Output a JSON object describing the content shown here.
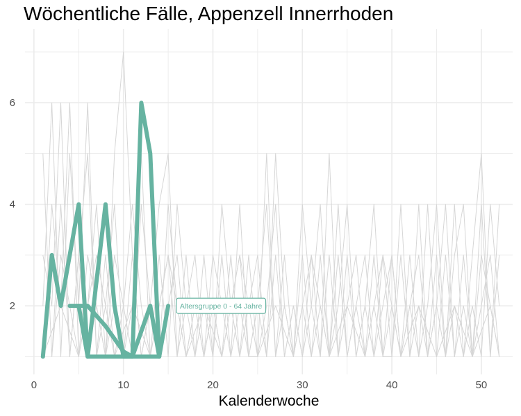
{
  "chart_data": {
    "type": "line",
    "title": "Wöchentliche Fälle, Appenzell Innerrhoden",
    "xlabel": "Kalenderwoche",
    "ylabel": "",
    "xlim": [
      -1,
      53.5
    ],
    "ylim": [
      0.65,
      7.45
    ],
    "x_ticks": [
      0,
      10,
      20,
      30,
      40,
      50
    ],
    "y_ticks": [
      2,
      4,
      6
    ],
    "grid": true,
    "legend": "none",
    "colors": {
      "highlight": "#66b3a1",
      "background_lines": "#d6d6d6",
      "grid": "#ebebeb"
    },
    "highlight_series": {
      "name": "Altersgruppe 0 - 64 Jahre",
      "segments": [
        [
          [
            1,
            1
          ],
          [
            2,
            3
          ],
          [
            3,
            2
          ],
          [
            5,
            4
          ],
          [
            6,
            1
          ],
          [
            8,
            4
          ],
          [
            9,
            2
          ],
          [
            10,
            1
          ],
          [
            11,
            1
          ],
          [
            12,
            6
          ],
          [
            13,
            5
          ],
          [
            14,
            1
          ]
        ],
        [
          [
            4,
            2
          ],
          [
            5,
            2
          ],
          [
            6,
            2
          ],
          [
            8,
            1.6
          ],
          [
            10,
            1.1
          ],
          [
            11,
            1
          ],
          [
            13,
            2
          ],
          [
            14,
            1
          ],
          [
            15,
            2
          ]
        ],
        [
          [
            5,
            2
          ],
          [
            6,
            1
          ],
          [
            7,
            1
          ],
          [
            8,
            1
          ],
          [
            9,
            1
          ],
          [
            10,
            1
          ],
          [
            11,
            1
          ],
          [
            12,
            1
          ],
          [
            13,
            1
          ],
          [
            14,
            1
          ]
        ]
      ]
    },
    "annotation": {
      "text": "Altersgruppe 0 - 64 Jahre",
      "x": 16.3,
      "y": 2
    },
    "background_series": [
      [
        [
          1,
          5
        ],
        [
          2,
          1
        ],
        [
          3,
          4
        ],
        [
          4,
          1
        ],
        [
          5,
          3
        ],
        [
          6,
          1
        ],
        [
          7,
          2
        ],
        [
          8,
          1
        ],
        [
          9,
          5
        ],
        [
          10,
          7
        ],
        [
          11,
          3
        ],
        [
          12,
          1
        ],
        [
          13,
          2
        ],
        [
          14,
          4
        ],
        [
          15,
          5
        ],
        [
          16,
          1
        ],
        [
          17,
          3
        ],
        [
          18,
          1
        ],
        [
          19,
          2
        ],
        [
          20,
          1
        ],
        [
          21,
          3
        ],
        [
          22,
          1
        ],
        [
          23,
          2
        ],
        [
          24,
          1
        ],
        [
          25,
          1
        ],
        [
          26,
          5
        ],
        [
          27,
          1
        ],
        [
          28,
          2
        ],
        [
          29,
          1
        ],
        [
          30,
          3
        ],
        [
          31,
          1
        ],
        [
          32,
          2
        ],
        [
          33,
          1
        ],
        [
          34,
          4
        ],
        [
          35,
          1
        ],
        [
          36,
          2
        ],
        [
          37,
          1
        ],
        [
          38,
          3
        ],
        [
          39,
          1
        ],
        [
          40,
          2
        ],
        [
          41,
          1
        ],
        [
          42,
          3
        ],
        [
          43,
          1
        ],
        [
          44,
          2
        ],
        [
          45,
          4
        ],
        [
          46,
          1
        ],
        [
          47,
          2
        ],
        [
          48,
          1
        ],
        [
          49,
          3
        ],
        [
          50,
          5
        ],
        [
          51,
          1
        ],
        [
          52,
          4
        ]
      ],
      [
        [
          1,
          2
        ],
        [
          2,
          6
        ],
        [
          3,
          1
        ],
        [
          4,
          5
        ],
        [
          5,
          2
        ],
        [
          6,
          6
        ],
        [
          7,
          1
        ],
        [
          8,
          3
        ],
        [
          9,
          1
        ],
        [
          10,
          2
        ],
        [
          11,
          4
        ],
        [
          12,
          2
        ],
        [
          13,
          1
        ],
        [
          14,
          3
        ],
        [
          15,
          1
        ],
        [
          16,
          4
        ],
        [
          17,
          2
        ],
        [
          18,
          1
        ],
        [
          19,
          3
        ],
        [
          20,
          1
        ],
        [
          21,
          4
        ],
        [
          22,
          2
        ],
        [
          23,
          1
        ],
        [
          24,
          3
        ],
        [
          25,
          1
        ],
        [
          26,
          2
        ],
        [
          27,
          4
        ],
        [
          28,
          1
        ],
        [
          29,
          2
        ],
        [
          30,
          1
        ],
        [
          31,
          3
        ],
        [
          32,
          1
        ],
        [
          33,
          5
        ],
        [
          34,
          1
        ],
        [
          35,
          3
        ],
        [
          36,
          1
        ],
        [
          37,
          2
        ],
        [
          38,
          4
        ],
        [
          39,
          1
        ],
        [
          40,
          3
        ],
        [
          41,
          1
        ],
        [
          42,
          2
        ],
        [
          43,
          1
        ],
        [
          44,
          4
        ],
        [
          45,
          1
        ],
        [
          46,
          3
        ],
        [
          47,
          1
        ],
        [
          48,
          2
        ],
        [
          49,
          1
        ],
        [
          50,
          3
        ],
        [
          51,
          2
        ],
        [
          52,
          1
        ]
      ],
      [
        [
          1,
          3
        ],
        [
          2,
          2
        ],
        [
          3,
          6
        ],
        [
          4,
          1
        ],
        [
          5,
          3
        ],
        [
          6,
          5
        ],
        [
          7,
          1
        ],
        [
          8,
          2
        ],
        [
          9,
          4
        ],
        [
          10,
          1
        ],
        [
          11,
          2
        ],
        [
          12,
          5
        ],
        [
          13,
          1
        ],
        [
          14,
          2
        ],
        [
          15,
          3
        ],
        [
          16,
          1
        ],
        [
          17,
          2
        ],
        [
          18,
          3
        ],
        [
          19,
          1
        ],
        [
          20,
          2
        ],
        [
          21,
          1
        ],
        [
          22,
          3
        ],
        [
          23,
          1
        ],
        [
          24,
          2
        ],
        [
          25,
          3
        ],
        [
          26,
          1
        ],
        [
          27,
          5
        ],
        [
          28,
          2
        ],
        [
          29,
          1
        ],
        [
          30,
          2
        ],
        [
          31,
          1
        ],
        [
          32,
          3
        ],
        [
          33,
          1
        ],
        [
          34,
          2
        ],
        [
          35,
          4
        ],
        [
          36,
          1
        ],
        [
          37,
          2
        ],
        [
          38,
          1
        ],
        [
          39,
          3
        ],
        [
          40,
          1
        ],
        [
          41,
          4
        ],
        [
          42,
          1
        ],
        [
          43,
          2
        ],
        [
          44,
          1
        ],
        [
          45,
          3
        ],
        [
          46,
          1
        ],
        [
          47,
          4
        ],
        [
          48,
          1
        ],
        [
          49,
          2
        ],
        [
          50,
          1
        ],
        [
          51,
          4
        ],
        [
          52,
          2
        ]
      ],
      [
        [
          1,
          1
        ],
        [
          2,
          4
        ],
        [
          3,
          2
        ],
        [
          4,
          6
        ],
        [
          5,
          1
        ],
        [
          6,
          3
        ],
        [
          7,
          2
        ],
        [
          8,
          1
        ],
        [
          9,
          3
        ],
        [
          10,
          2
        ],
        [
          11,
          1
        ],
        [
          12,
          4
        ],
        [
          13,
          2
        ],
        [
          14,
          1
        ],
        [
          15,
          2
        ],
        [
          16,
          3
        ],
        [
          17,
          1
        ],
        [
          18,
          2
        ],
        [
          19,
          1
        ],
        [
          20,
          3
        ],
        [
          21,
          2
        ],
        [
          22,
          1
        ],
        [
          23,
          4
        ],
        [
          24,
          1
        ],
        [
          25,
          2
        ],
        [
          26,
          1
        ],
        [
          27,
          3
        ],
        [
          28,
          1
        ],
        [
          29,
          2
        ],
        [
          30,
          1
        ],
        [
          31,
          2
        ],
        [
          32,
          4
        ],
        [
          33,
          1
        ],
        [
          34,
          3
        ],
        [
          35,
          1
        ],
        [
          36,
          2
        ],
        [
          37,
          3
        ],
        [
          38,
          1
        ],
        [
          39,
          2
        ],
        [
          40,
          3
        ],
        [
          41,
          1
        ],
        [
          42,
          2
        ],
        [
          43,
          3
        ],
        [
          44,
          1
        ],
        [
          45,
          2
        ],
        [
          46,
          4
        ],
        [
          47,
          1
        ],
        [
          48,
          3
        ],
        [
          49,
          1
        ],
        [
          50,
          2
        ],
        [
          51,
          3
        ],
        [
          52,
          1
        ]
      ],
      [
        [
          2,
          1
        ],
        [
          3,
          3
        ],
        [
          4,
          2
        ],
        [
          5,
          1
        ],
        [
          6,
          2
        ],
        [
          7,
          4
        ],
        [
          8,
          1
        ],
        [
          9,
          2
        ],
        [
          10,
          1
        ],
        [
          11,
          3
        ],
        [
          12,
          1
        ],
        [
          13,
          2
        ],
        [
          14,
          1
        ],
        [
          15,
          4
        ],
        [
          16,
          2
        ],
        [
          17,
          1
        ],
        [
          18,
          2
        ],
        [
          19,
          1
        ],
        [
          20,
          2
        ],
        [
          21,
          1
        ],
        [
          22,
          2
        ],
        [
          23,
          3
        ],
        [
          24,
          1
        ],
        [
          25,
          2
        ],
        [
          26,
          4
        ],
        [
          27,
          1
        ],
        [
          28,
          3
        ],
        [
          29,
          1
        ],
        [
          30,
          4
        ],
        [
          31,
          2
        ],
        [
          32,
          1
        ],
        [
          33,
          3
        ],
        [
          34,
          1
        ],
        [
          35,
          2
        ],
        [
          36,
          3
        ],
        [
          37,
          1
        ],
        [
          38,
          2
        ],
        [
          39,
          1
        ],
        [
          40,
          1
        ],
        [
          41,
          3
        ],
        [
          42,
          1
        ],
        [
          43,
          4
        ],
        [
          44,
          1
        ],
        [
          45,
          2
        ],
        [
          46,
          1
        ],
        [
          47,
          3
        ],
        [
          48,
          4
        ],
        [
          49,
          1
        ],
        [
          50,
          4
        ],
        [
          51,
          1
        ],
        [
          52,
          3
        ]
      ],
      [
        [
          1,
          1
        ],
        [
          3,
          2
        ],
        [
          5,
          1
        ],
        [
          7,
          3
        ],
        [
          9,
          1
        ],
        [
          11,
          2
        ],
        [
          13,
          1
        ],
        [
          15,
          3
        ],
        [
          17,
          1
        ],
        [
          19,
          2
        ],
        [
          21,
          1
        ],
        [
          23,
          3
        ],
        [
          25,
          1
        ],
        [
          27,
          2
        ],
        [
          29,
          1
        ],
        [
          31,
          3
        ],
        [
          33,
          1
        ],
        [
          35,
          2
        ],
        [
          37,
          1
        ],
        [
          39,
          3
        ],
        [
          41,
          1
        ],
        [
          43,
          2
        ],
        [
          45,
          1
        ],
        [
          47,
          2
        ],
        [
          49,
          1
        ],
        [
          51,
          2
        ],
        [
          52,
          1
        ]
      ]
    ]
  }
}
